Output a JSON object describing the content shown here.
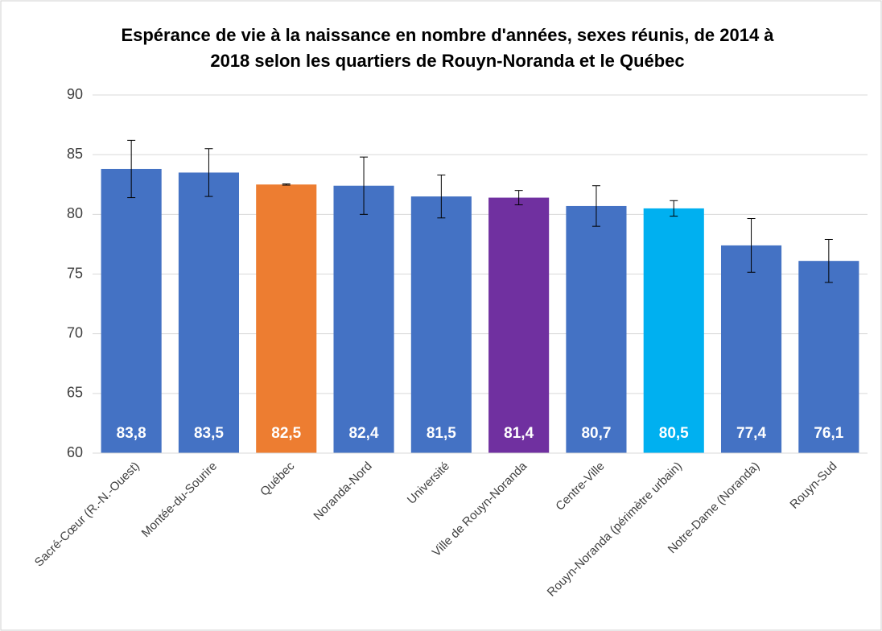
{
  "chart_data": {
    "type": "bar",
    "title": [
      "Espérance de vie à la naissance en nombre d'années, sexes réunis, de 2014 à",
      "2018 selon les quartiers de Rouyn-Noranda et le Québec"
    ],
    "categories": [
      "Sacré-Cœur (R.-N.-Ouest)",
      "Montée-du-Sourire",
      "Québec",
      "Noranda-Nord",
      "Université",
      "Ville de Rouyn-Noranda",
      "Centre-Ville",
      "Rouyn-Noranda (périmètre urbain)",
      "Notre-Dame (Noranda)",
      "Rouyn-Sud"
    ],
    "values": [
      83.8,
      83.5,
      82.5,
      82.4,
      81.5,
      81.4,
      80.7,
      80.5,
      77.4,
      76.1
    ],
    "value_labels": [
      "83,8",
      "83,5",
      "82,5",
      "82,4",
      "81,5",
      "81,4",
      "80,7",
      "80,5",
      "77,4",
      "76,1"
    ],
    "errors": [
      2.4,
      2.0,
      0.05,
      2.4,
      1.8,
      0.6,
      1.7,
      0.65,
      2.25,
      1.8
    ],
    "colors": [
      "#4472c4",
      "#4472c4",
      "#ed7d31",
      "#4472c4",
      "#4472c4",
      "#7030a0",
      "#4472c4",
      "#00b0f0",
      "#4472c4",
      "#4472c4"
    ],
    "ylim": [
      60,
      90
    ],
    "yticks": [
      60,
      65,
      70,
      75,
      80,
      85,
      90
    ],
    "grid": true
  }
}
